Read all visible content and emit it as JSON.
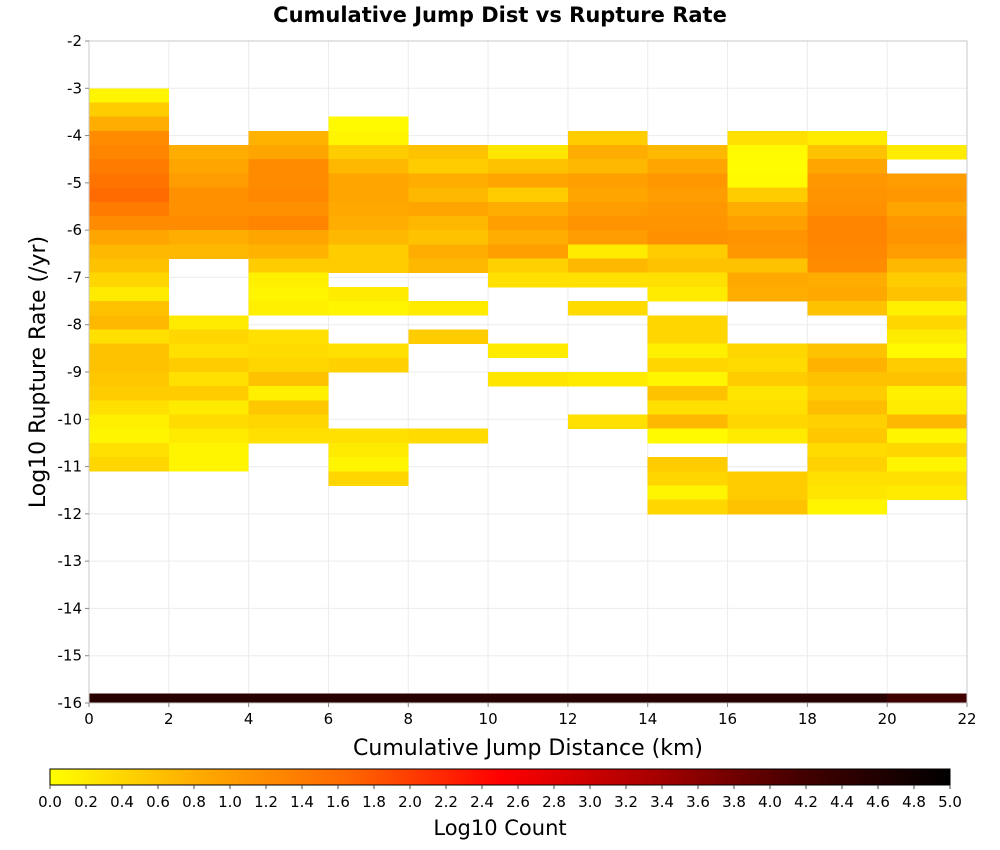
{
  "chart_data": {
    "type": "heatmap",
    "title": "Cumulative Jump Dist vs Rupture Rate",
    "xlabel": "Cumulative Jump Distance (km)",
    "ylabel": "Log10 Rupture Rate (/yr)",
    "xlim": [
      0,
      22
    ],
    "ylim": [
      -16,
      -2
    ],
    "x_ticks": [
      0,
      2,
      4,
      6,
      8,
      10,
      12,
      14,
      16,
      18,
      20,
      22
    ],
    "y_ticks": [
      -2,
      -3,
      -4,
      -5,
      -6,
      -7,
      -8,
      -9,
      -10,
      -11,
      -12,
      -13,
      -14,
      -15,
      -16
    ],
    "grid": true,
    "x_bin_width": 2,
    "y_bin_height": 0.3,
    "colorbar": {
      "label": "Log10 Count",
      "min": 0.0,
      "max": 5.0,
      "ticks": [
        "0.0",
        "0.2",
        "0.4",
        "0.6",
        "0.8",
        "1.0",
        "1.2",
        "1.4",
        "1.6",
        "1.8",
        "2.0",
        "2.2",
        "2.4",
        "2.6",
        "2.8",
        "3.0",
        "3.2",
        "3.4",
        "3.6",
        "3.8",
        "4.0",
        "4.2",
        "4.4",
        "4.6",
        "4.8",
        "5.0"
      ],
      "stops": [
        "#ffff00",
        "#ffaa00",
        "#ff6600",
        "#ff0000",
        "#aa0000",
        "#440000",
        "#000000"
      ]
    },
    "columns": [
      {
        "x0": 0,
        "cells": [
          [
            -3.0,
            0.1
          ],
          [
            -3.3,
            0.5
          ],
          [
            -3.6,
            0.8
          ],
          [
            -3.9,
            1.2
          ],
          [
            -4.2,
            1.3
          ],
          [
            -4.5,
            1.4
          ],
          [
            -4.8,
            1.5
          ],
          [
            -5.1,
            1.6
          ],
          [
            -5.4,
            1.4
          ],
          [
            -5.7,
            1.2
          ],
          [
            -6.0,
            0.9
          ],
          [
            -6.3,
            0.7
          ],
          [
            -6.6,
            0.6
          ],
          [
            -6.9,
            0.4
          ],
          [
            -7.2,
            0.2
          ],
          [
            -7.5,
            0.6
          ],
          [
            -7.8,
            0.7
          ],
          [
            -8.1,
            0.3
          ],
          [
            -8.4,
            0.6
          ],
          [
            -8.7,
            0.6
          ],
          [
            -9.0,
            0.55
          ],
          [
            -9.3,
            0.5
          ],
          [
            -9.6,
            0.3
          ],
          [
            -9.9,
            0.15
          ],
          [
            -10.2,
            0.1
          ],
          [
            -10.5,
            0.3
          ],
          [
            -10.8,
            0.4
          ]
        ]
      },
      {
        "x0": 2,
        "cells": [
          [
            -4.2,
            0.8
          ],
          [
            -4.5,
            0.9
          ],
          [
            -4.8,
            1.0
          ],
          [
            -5.1,
            1.15
          ],
          [
            -5.4,
            1.15
          ],
          [
            -5.7,
            1.2
          ],
          [
            -6.0,
            0.8
          ],
          [
            -6.3,
            0.7
          ],
          [
            -7.8,
            0.2
          ],
          [
            -8.1,
            0.4
          ],
          [
            -8.4,
            0.3
          ],
          [
            -8.7,
            0.5
          ],
          [
            -9.0,
            0.3
          ],
          [
            -9.3,
            0.5
          ],
          [
            -9.6,
            0.2
          ],
          [
            -9.9,
            0.35
          ],
          [
            -10.2,
            0.2
          ],
          [
            -10.5,
            0.1
          ],
          [
            -10.8,
            0.1
          ]
        ]
      },
      {
        "x0": 4,
        "cells": [
          [
            -3.9,
            0.75
          ],
          [
            -4.2,
            0.9
          ],
          [
            -4.5,
            1.2
          ],
          [
            -4.8,
            1.2
          ],
          [
            -5.1,
            1.25
          ],
          [
            -5.4,
            1.15
          ],
          [
            -5.7,
            1.3
          ],
          [
            -6.0,
            0.9
          ],
          [
            -6.3,
            0.75
          ],
          [
            -6.6,
            0.5
          ],
          [
            -6.9,
            0.15
          ],
          [
            -7.2,
            0.1
          ],
          [
            -7.5,
            0.15
          ],
          [
            -8.1,
            0.3
          ],
          [
            -8.4,
            0.35
          ],
          [
            -8.7,
            0.4
          ],
          [
            -9.0,
            0.6
          ],
          [
            -9.3,
            0.15
          ],
          [
            -9.6,
            0.55
          ],
          [
            -9.9,
            0.4
          ],
          [
            -10.2,
            0.3
          ]
        ]
      },
      {
        "x0": 6,
        "cells": [
          [
            -3.6,
            0.05
          ],
          [
            -3.9,
            0.1
          ],
          [
            -4.2,
            0.5
          ],
          [
            -4.5,
            0.7
          ],
          [
            -4.8,
            0.9
          ],
          [
            -5.1,
            0.9
          ],
          [
            -5.4,
            0.85
          ],
          [
            -5.7,
            0.8
          ],
          [
            -6.0,
            0.7
          ],
          [
            -6.3,
            0.5
          ],
          [
            -6.6,
            0.5
          ],
          [
            -7.2,
            0.2
          ],
          [
            -7.5,
            0.1
          ],
          [
            -8.4,
            0.3
          ],
          [
            -8.7,
            0.45
          ],
          [
            -10.2,
            0.3
          ],
          [
            -10.5,
            0.2
          ],
          [
            -10.8,
            0.1
          ],
          [
            -11.1,
            0.4
          ]
        ]
      },
      {
        "x0": 8,
        "cells": [
          [
            -4.2,
            0.6
          ],
          [
            -4.5,
            0.5
          ],
          [
            -4.8,
            0.8
          ],
          [
            -5.1,
            0.7
          ],
          [
            -5.4,
            0.9
          ],
          [
            -5.7,
            0.7
          ],
          [
            -6.0,
            0.6
          ],
          [
            -6.3,
            0.8
          ],
          [
            -6.6,
            0.7
          ],
          [
            -7.5,
            0.2
          ],
          [
            -8.1,
            0.5
          ],
          [
            -10.2,
            0.35
          ]
        ]
      },
      {
        "x0": 10,
        "cells": [
          [
            -4.2,
            0.25
          ],
          [
            -4.5,
            0.6
          ],
          [
            -4.8,
            0.9
          ],
          [
            -5.1,
            0.5
          ],
          [
            -5.4,
            0.8
          ],
          [
            -5.7,
            0.95
          ],
          [
            -6.0,
            0.8
          ],
          [
            -6.3,
            0.95
          ],
          [
            -6.6,
            0.45
          ],
          [
            -6.9,
            0.3
          ],
          [
            -8.4,
            0.2
          ],
          [
            -9.0,
            0.25
          ]
        ]
      },
      {
        "x0": 12,
        "cells": [
          [
            -3.9,
            0.5
          ],
          [
            -4.2,
            0.8
          ],
          [
            -4.5,
            0.7
          ],
          [
            -4.8,
            0.95
          ],
          [
            -5.1,
            0.9
          ],
          [
            -5.4,
            1.0
          ],
          [
            -5.7,
            1.1
          ],
          [
            -6.0,
            1.0
          ],
          [
            -6.3,
            0.2
          ],
          [
            -6.6,
            0.7
          ],
          [
            -6.9,
            0.3
          ],
          [
            -7.5,
            0.35
          ],
          [
            -9.0,
            0.2
          ],
          [
            -9.9,
            0.3
          ]
        ]
      },
      {
        "x0": 14,
        "cells": [
          [
            -4.2,
            0.7
          ],
          [
            -4.5,
            0.9
          ],
          [
            -4.8,
            1.05
          ],
          [
            -5.1,
            1.0
          ],
          [
            -5.4,
            1.05
          ],
          [
            -5.7,
            1.1
          ],
          [
            -6.0,
            1.15
          ],
          [
            -6.3,
            0.5
          ],
          [
            -6.6,
            0.6
          ],
          [
            -6.9,
            0.3
          ],
          [
            -7.2,
            0.2
          ],
          [
            -7.8,
            0.4
          ],
          [
            -8.1,
            0.4
          ],
          [
            -8.4,
            0.15
          ],
          [
            -8.7,
            0.4
          ],
          [
            -9.0,
            0.1
          ],
          [
            -9.3,
            0.6
          ],
          [
            -9.6,
            0.3
          ],
          [
            -9.9,
            0.7
          ],
          [
            -10.2,
            0.05
          ],
          [
            -10.8,
            0.5
          ],
          [
            -11.1,
            0.4
          ],
          [
            -11.4,
            0.1
          ],
          [
            -11.7,
            0.4
          ]
        ]
      },
      {
        "x0": 16,
        "cells": [
          [
            -3.9,
            0.3
          ],
          [
            -4.2,
            0.05
          ],
          [
            -4.5,
            0.02
          ],
          [
            -4.8,
            0.05
          ],
          [
            -5.1,
            0.5
          ],
          [
            -5.4,
            0.8
          ],
          [
            -5.7,
            0.95
          ],
          [
            -6.0,
            1.1
          ],
          [
            -6.3,
            1.05
          ],
          [
            -6.6,
            0.6
          ],
          [
            -6.9,
            0.85
          ],
          [
            -7.2,
            0.8
          ],
          [
            -8.4,
            0.4
          ],
          [
            -8.7,
            0.35
          ],
          [
            -9.0,
            0.5
          ],
          [
            -9.3,
            0.25
          ],
          [
            -9.6,
            0.3
          ],
          [
            -9.9,
            0.4
          ],
          [
            -10.2,
            0.2
          ],
          [
            -11.1,
            0.5
          ],
          [
            -11.4,
            0.5
          ],
          [
            -11.7,
            0.6
          ]
        ]
      },
      {
        "x0": 18,
        "cells": [
          [
            -3.9,
            0.2
          ],
          [
            -4.2,
            0.6
          ],
          [
            -4.5,
            0.9
          ],
          [
            -4.8,
            1.05
          ],
          [
            -5.1,
            1.1
          ],
          [
            -5.4,
            1.15
          ],
          [
            -5.7,
            1.3
          ],
          [
            -6.0,
            1.3
          ],
          [
            -6.3,
            1.25
          ],
          [
            -6.6,
            1.2
          ],
          [
            -6.9,
            0.8
          ],
          [
            -7.2,
            0.85
          ],
          [
            -7.5,
            0.6
          ],
          [
            -8.4,
            0.6
          ],
          [
            -8.7,
            0.75
          ],
          [
            -9.0,
            0.6
          ],
          [
            -9.3,
            0.5
          ],
          [
            -9.6,
            0.65
          ],
          [
            -9.9,
            0.45
          ],
          [
            -10.2,
            0.55
          ],
          [
            -10.5,
            0.35
          ],
          [
            -10.8,
            0.45
          ],
          [
            -11.1,
            0.3
          ],
          [
            -11.4,
            0.25
          ],
          [
            -11.7,
            0.1
          ]
        ]
      },
      {
        "x0": 20,
        "cells": [
          [
            -4.2,
            0.2
          ],
          [
            -4.8,
            1.0
          ],
          [
            -5.1,
            1.05
          ],
          [
            -5.4,
            0.9
          ],
          [
            -5.7,
            1.05
          ],
          [
            -6.0,
            1.1
          ],
          [
            -6.3,
            1.0
          ],
          [
            -6.6,
            0.7
          ],
          [
            -6.9,
            0.5
          ],
          [
            -7.2,
            0.6
          ],
          [
            -7.5,
            0.15
          ],
          [
            -7.8,
            0.4
          ],
          [
            -8.1,
            0.2
          ],
          [
            -8.4,
            0.05
          ],
          [
            -8.7,
            0.5
          ],
          [
            -9.0,
            0.6
          ],
          [
            -9.3,
            0.15
          ],
          [
            -9.6,
            0.2
          ],
          [
            -9.9,
            0.7
          ],
          [
            -10.2,
            0.1
          ],
          [
            -10.5,
            0.4
          ],
          [
            -10.8,
            0.1
          ],
          [
            -11.1,
            0.3
          ],
          [
            -11.4,
            0.2
          ]
        ]
      }
    ],
    "bottom_row": {
      "y_top": -15.8,
      "y_bottom": -16.0,
      "values": [
        4.5,
        4.5,
        4.5,
        4.5,
        4.5,
        4.5,
        4.5,
        4.5,
        4.5,
        4.5,
        4.2
      ]
    }
  }
}
